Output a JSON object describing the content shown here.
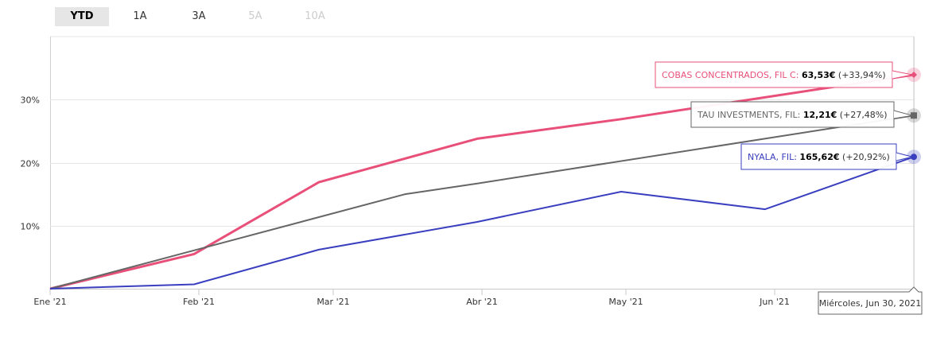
{
  "range_selector": {
    "tabs": [
      {
        "label": "YTD",
        "state": "active"
      },
      {
        "label": "1A",
        "state": "enabled"
      },
      {
        "label": "3A",
        "state": "enabled"
      },
      {
        "label": "5A",
        "state": "disabled"
      },
      {
        "label": "10A",
        "state": "disabled"
      }
    ]
  },
  "chart_data": {
    "type": "line",
    "title": "",
    "xlabel": "",
    "ylabel": "",
    "x_ticks": [
      {
        "label": "Ene '21",
        "date": "2021-01-01"
      },
      {
        "label": "Feb '21",
        "date": "2021-02-01"
      },
      {
        "label": "Mar '21",
        "date": "2021-03-01"
      },
      {
        "label": "Abr '21",
        "date": "2021-04-01"
      },
      {
        "label": "May '21",
        "date": "2021-05-01"
      },
      {
        "label": "Jun '21",
        "date": "2021-06-01"
      }
    ],
    "xlim": [
      "2021-01-01",
      "2021-06-30"
    ],
    "y_ticks": [
      {
        "label": "10%",
        "value": 10
      },
      {
        "label": "20%",
        "value": 20
      },
      {
        "label": "30%",
        "value": 30
      }
    ],
    "ylim": [
      0,
      40
    ],
    "grid": true,
    "series": [
      {
        "key": "cobas",
        "color": "#e8507a",
        "marker": "diamond",
        "points": [
          {
            "date": "2021-01-01",
            "value": 0.0
          },
          {
            "date": "2021-01-31",
            "value": 5.5
          },
          {
            "date": "2021-02-26",
            "value": 16.9
          },
          {
            "date": "2021-03-31",
            "value": 23.8
          },
          {
            "date": "2021-04-30",
            "value": 26.9
          },
          {
            "date": "2021-06-30",
            "value": 33.94
          }
        ],
        "tooltip": {
          "name": "COBAS CONCENTRADOS, FIL C:",
          "price": "63,53€",
          "change": "(+33,94%)"
        }
      },
      {
        "key": "tau",
        "color": "#666666",
        "marker": "square",
        "points": [
          {
            "date": "2021-01-01",
            "value": 0.0
          },
          {
            "date": "2021-03-16",
            "value": 15.0
          },
          {
            "date": "2021-03-31",
            "value": 16.7
          },
          {
            "date": "2021-06-30",
            "value": 27.48
          }
        ],
        "tooltip": {
          "name": "TAU INVESTMENTS, FIL:",
          "price": "12,21€",
          "change": "(+27,48%)"
        }
      },
      {
        "key": "nyala",
        "color": "#3a3fbf",
        "marker": "circle",
        "points": [
          {
            "date": "2021-01-01",
            "value": 0.0
          },
          {
            "date": "2021-01-31",
            "value": 0.7
          },
          {
            "date": "2021-02-26",
            "value": 6.2
          },
          {
            "date": "2021-03-31",
            "value": 10.6
          },
          {
            "date": "2021-04-30",
            "value": 15.4
          },
          {
            "date": "2021-05-30",
            "value": 12.6
          },
          {
            "date": "2021-06-30",
            "value": 20.92
          }
        ],
        "tooltip": {
          "name": "NYALA, FIL:",
          "price": "165,62€",
          "change": "(+20,92%)"
        }
      }
    ],
    "date_tooltip": "Miércoles, Jun 30, 2021"
  }
}
